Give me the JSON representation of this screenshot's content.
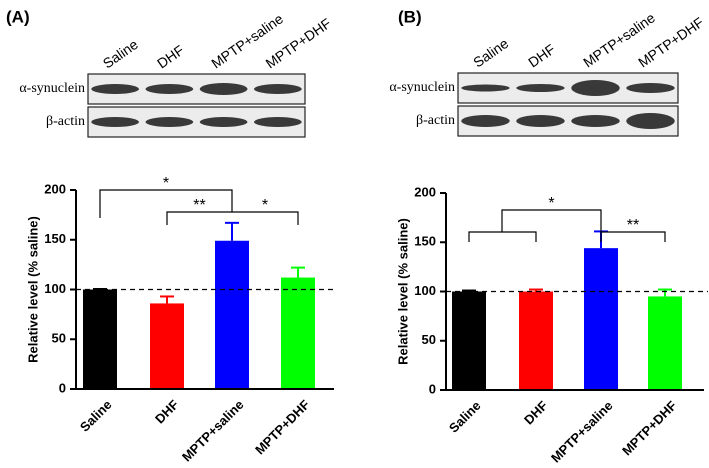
{
  "chart_data": [
    {
      "type": "bar",
      "panel_label": "(A)",
      "blot_rows": [
        "α-synuclein",
        "β-actin"
      ],
      "ylabel": "Relative level (% saline)",
      "categories": [
        "Saline",
        "DHF",
        "MPTP+saline",
        "MPTP+DHF"
      ],
      "values": [
        100,
        86,
        149,
        112
      ],
      "errors": [
        0.5,
        7,
        18,
        10
      ],
      "colors": [
        "#000000",
        "#ff0000",
        "#0000ff",
        "#00ff00"
      ],
      "ylim": [
        0,
        200
      ],
      "yticks": [
        0,
        50,
        100,
        150,
        200
      ],
      "reference_line": 100,
      "annotations": [
        "*",
        "**",
        "*"
      ]
    },
    {
      "type": "bar",
      "panel_label": "(B)",
      "blot_rows": [
        "α-synuclein",
        "β-actin"
      ],
      "ylabel": "Relative level (% saline)",
      "categories": [
        "Saline",
        "DHF",
        "MPTP+saline",
        "MPTP+DHF"
      ],
      "values": [
        100,
        100,
        144,
        95
      ],
      "errors": [
        1,
        2,
        17,
        7
      ],
      "colors": [
        "#000000",
        "#ff0000",
        "#0000ff",
        "#00ff00"
      ],
      "ylim": [
        0,
        200
      ],
      "yticks": [
        0,
        50,
        100,
        150,
        200
      ],
      "reference_line": 100,
      "annotations": [
        "*",
        "**"
      ]
    }
  ]
}
